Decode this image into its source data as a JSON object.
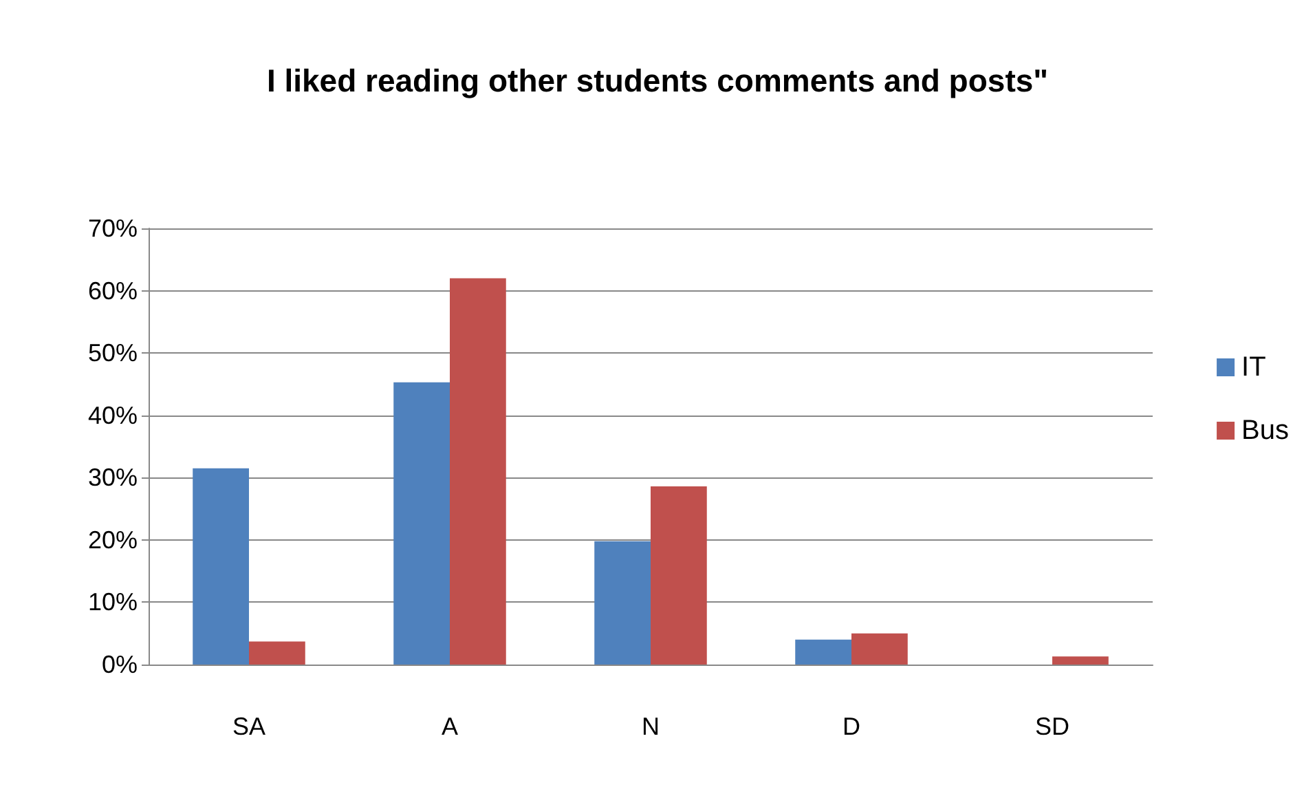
{
  "chart_data": {
    "type": "bar",
    "title": "I liked reading other students comments and posts\"",
    "categories": [
      "SA",
      "A",
      "N",
      "D",
      "SD"
    ],
    "series": [
      {
        "name": "IT",
        "color": "#4f81bd",
        "values": [
          31.5,
          45.3,
          19.8,
          4,
          0
        ]
      },
      {
        "name": "Bus",
        "color": "#c0504d",
        "values": [
          3.7,
          62,
          28.6,
          5,
          1.3
        ]
      }
    ],
    "ylim": [
      0,
      70
    ],
    "yticks": [
      {
        "value": 0,
        "label": "0%"
      },
      {
        "value": 10,
        "label": "10%"
      },
      {
        "value": 20,
        "label": "20%"
      },
      {
        "value": 30,
        "label": "30%"
      },
      {
        "value": 40,
        "label": "40%"
      },
      {
        "value": 50,
        "label": "50%"
      },
      {
        "value": 60,
        "label": "60%"
      },
      {
        "value": 70,
        "label": "70%"
      }
    ],
    "grid": "y",
    "legend": "right"
  }
}
